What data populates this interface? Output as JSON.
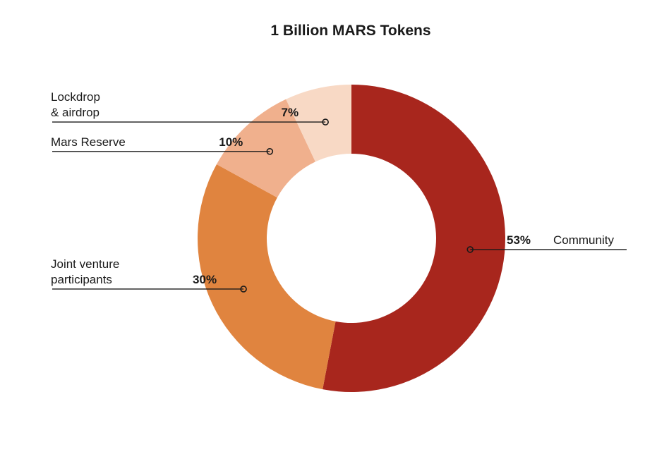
{
  "chart_data": {
    "type": "pie",
    "title": "1 Billion MARS Tokens",
    "slices": [
      {
        "label": "Community",
        "value": 53,
        "pct_label": "53%",
        "color": "#a8261d"
      },
      {
        "label": "Joint venture participants",
        "label_lines": [
          "Joint venture",
          "participants"
        ],
        "value": 30,
        "pct_label": "30%",
        "color": "#e0843f"
      },
      {
        "label": "Mars Reserve",
        "label_lines": [
          "Mars Reserve"
        ],
        "value": 10,
        "pct_label": "10%",
        "color": "#f0b08d"
      },
      {
        "label": "Lockdrop & airdrop",
        "label_lines": [
          "Lockdrop",
          "& airdrop"
        ],
        "value": 7,
        "pct_label": "7%",
        "color": "#f8d9c5"
      }
    ],
    "legend": "none",
    "donut": true
  }
}
